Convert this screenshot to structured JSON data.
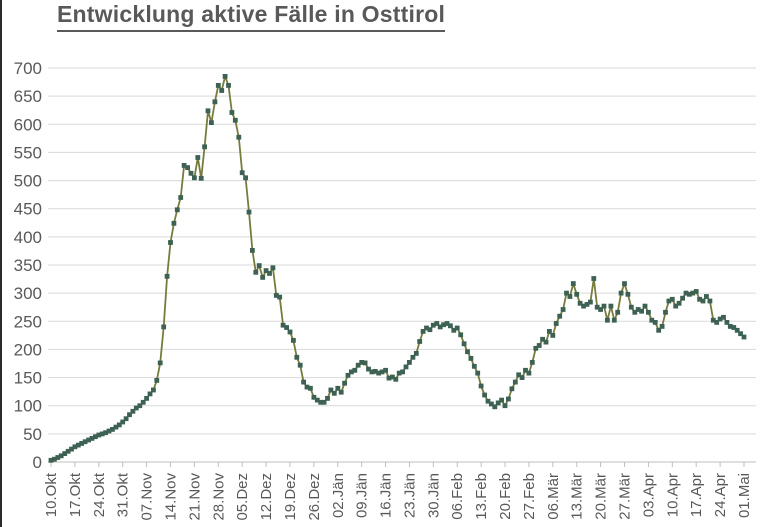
{
  "title": "Entwicklung aktive Fälle in Osttirol",
  "chart_data": {
    "type": "line",
    "title": "Entwicklung aktive Fälle in Osttirol",
    "xlabel": "",
    "ylabel": "",
    "ylim": [
      0,
      700
    ],
    "ytick_step": 50,
    "grid": "horizontal",
    "legend": "none",
    "marker": "square",
    "points_per_tick": 7,
    "y_tick_labels": [
      "0",
      "50",
      "100",
      "150",
      "200",
      "250",
      "300",
      "350",
      "400",
      "450",
      "500",
      "550",
      "600",
      "650",
      "700"
    ],
    "x_tick_labels": [
      "10.Okt",
      "17.Okt",
      "24.Okt",
      "31.Okt",
      "07.Nov",
      "14.Nov",
      "21.Nov",
      "28.Nov",
      "05.Dez",
      "12.Dez",
      "19.Dez",
      "26.Dez",
      "02.Jän",
      "09.Jän",
      "16.Jän",
      "23.Jän",
      "30.Jän",
      "06.Feb",
      "13.Feb",
      "20.Feb",
      "27.Feb",
      "06.Mär",
      "13.Mär",
      "20.Mär",
      "27.Mär",
      "03.Apr",
      "10.Apr",
      "17.Apr",
      "24.Apr",
      "01.Mai"
    ],
    "values": [
      3,
      5,
      8,
      11,
      15,
      19,
      23,
      27,
      30,
      33,
      36,
      39,
      42,
      45,
      48,
      50,
      52,
      55,
      58,
      62,
      66,
      71,
      77,
      84,
      90,
      96,
      100,
      106,
      113,
      121,
      128,
      145,
      176,
      240,
      330,
      390,
      424,
      448,
      470,
      527,
      523,
      513,
      505,
      541,
      504,
      560,
      624,
      603,
      640,
      669,
      660,
      685,
      669,
      621,
      607,
      577,
      514,
      505,
      444,
      376,
      337,
      349,
      328,
      340,
      335,
      345,
      296,
      293,
      243,
      239,
      231,
      216,
      186,
      172,
      142,
      133,
      131,
      115,
      110,
      106,
      106,
      113,
      128,
      122,
      131,
      124,
      140,
      154,
      160,
      163,
      172,
      177,
      176,
      165,
      160,
      161,
      158,
      160,
      163,
      149,
      151,
      147,
      158,
      160,
      169,
      177,
      186,
      193,
      214,
      232,
      238,
      235,
      243,
      246,
      240,
      244,
      246,
      242,
      234,
      238,
      226,
      210,
      196,
      184,
      170,
      158,
      135,
      119,
      108,
      103,
      98,
      105,
      110,
      100,
      112,
      130,
      142,
      155,
      150,
      163,
      158,
      177,
      202,
      207,
      218,
      213,
      232,
      225,
      246,
      259,
      271,
      300,
      294,
      317,
      298,
      282,
      277,
      280,
      284,
      326,
      275,
      271,
      277,
      252,
      277,
      252,
      266,
      300,
      317,
      298,
      275,
      266,
      271,
      268,
      277,
      266,
      252,
      248,
      234,
      241,
      266,
      286,
      289,
      277,
      282,
      291,
      300,
      298,
      300,
      303,
      289,
      286,
      294,
      286,
      252,
      248,
      254,
      257,
      248,
      241,
      239,
      234,
      228,
      222
    ],
    "colors": {
      "line": "#777b3c",
      "marker": "#3d6152",
      "grid": "#d9d9d9",
      "axis": "#bfbfbf",
      "tick": "#bfbfbf",
      "text": "#595959",
      "title": "#595959",
      "border_left": "#2b2b2b"
    }
  }
}
